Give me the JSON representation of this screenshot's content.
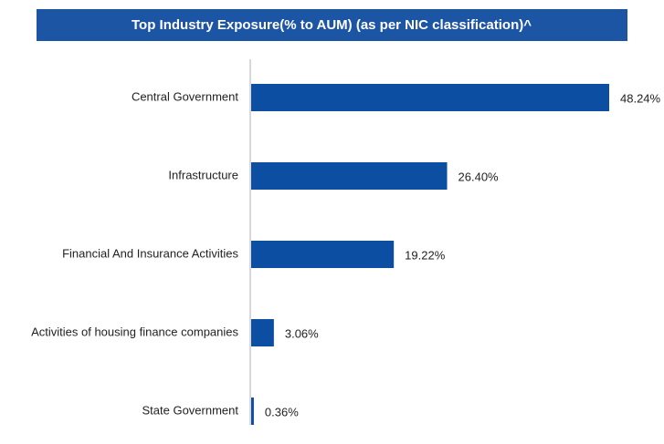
{
  "chart_data": {
    "type": "bar",
    "orientation": "horizontal",
    "title": "Top Industry Exposure(% to AUM) (as per NIC classification)^",
    "categories": [
      "Central Government",
      "Infrastructure",
      "Financial And Insurance Activities",
      "Activities of housing finance companies",
      "State Government"
    ],
    "values": [
      48.24,
      26.4,
      19.22,
      3.06,
      0.36
    ],
    "value_labels": [
      "48.24%",
      "26.40%",
      "19.22%",
      "3.06%",
      "0.36%"
    ],
    "color": "#0b4ea2"
  }
}
